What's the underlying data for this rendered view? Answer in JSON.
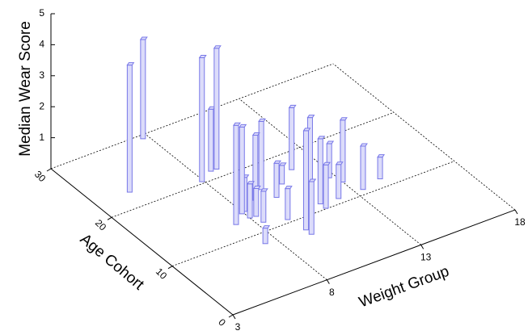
{
  "chart_data": {
    "type": "bar3d",
    "xlabel": "Weight Group",
    "ylabel": "Age Cohort",
    "zlabel": "Median Wear Score",
    "color": "#7878e8",
    "fill": "#dcdcfa",
    "grid": true,
    "xlim": [
      3,
      18
    ],
    "xticks": [
      3,
      8,
      13,
      18
    ],
    "ylim": [
      0,
      30
    ],
    "yticks": [
      0,
      10,
      20,
      30
    ],
    "zlim": [
      0,
      5
    ],
    "zticks": [
      1,
      2,
      3,
      4,
      5
    ],
    "x": [
      4.8,
      7.7,
      7.9,
      9.0,
      8.7,
      7.2,
      7.9,
      8.1,
      8.0,
      9.0,
      9.7,
      8.3,
      8.3,
      7.4,
      9.9,
      10.7,
      9.3,
      11.7,
      9.5,
      10.1,
      9.5,
      11.2,
      12.7,
      11.2,
      12.1,
      13.0,
      13.4,
      14.5
    ],
    "y": [
      22.6,
      29.4,
      20.3,
      21.3,
      21.3,
      12.5,
      13.7,
      13.9,
      12.7,
      14.9,
      16.1,
      12.6,
      11.4,
      8.3,
      14.2,
      15.8,
      10.5,
      17.3,
      8.1,
      9.3,
      7.2,
      11.0,
      14.2,
      10.1,
      10.8,
      12.9,
      10.8,
      11.4
    ],
    "z": [
      4.1,
      3.2,
      4.0,
      3.9,
      2.0,
      3.2,
      2.8,
      1.1,
      1.1,
      2.1,
      2.2,
      0.9,
      1.0,
      0.5,
      1.1,
      0.6,
      1.0,
      2.0,
      3.2,
      3.3,
      1.7,
      2.1,
      1.1,
      1.4,
      1.1,
      2.0,
      1.4,
      0.7
    ]
  }
}
